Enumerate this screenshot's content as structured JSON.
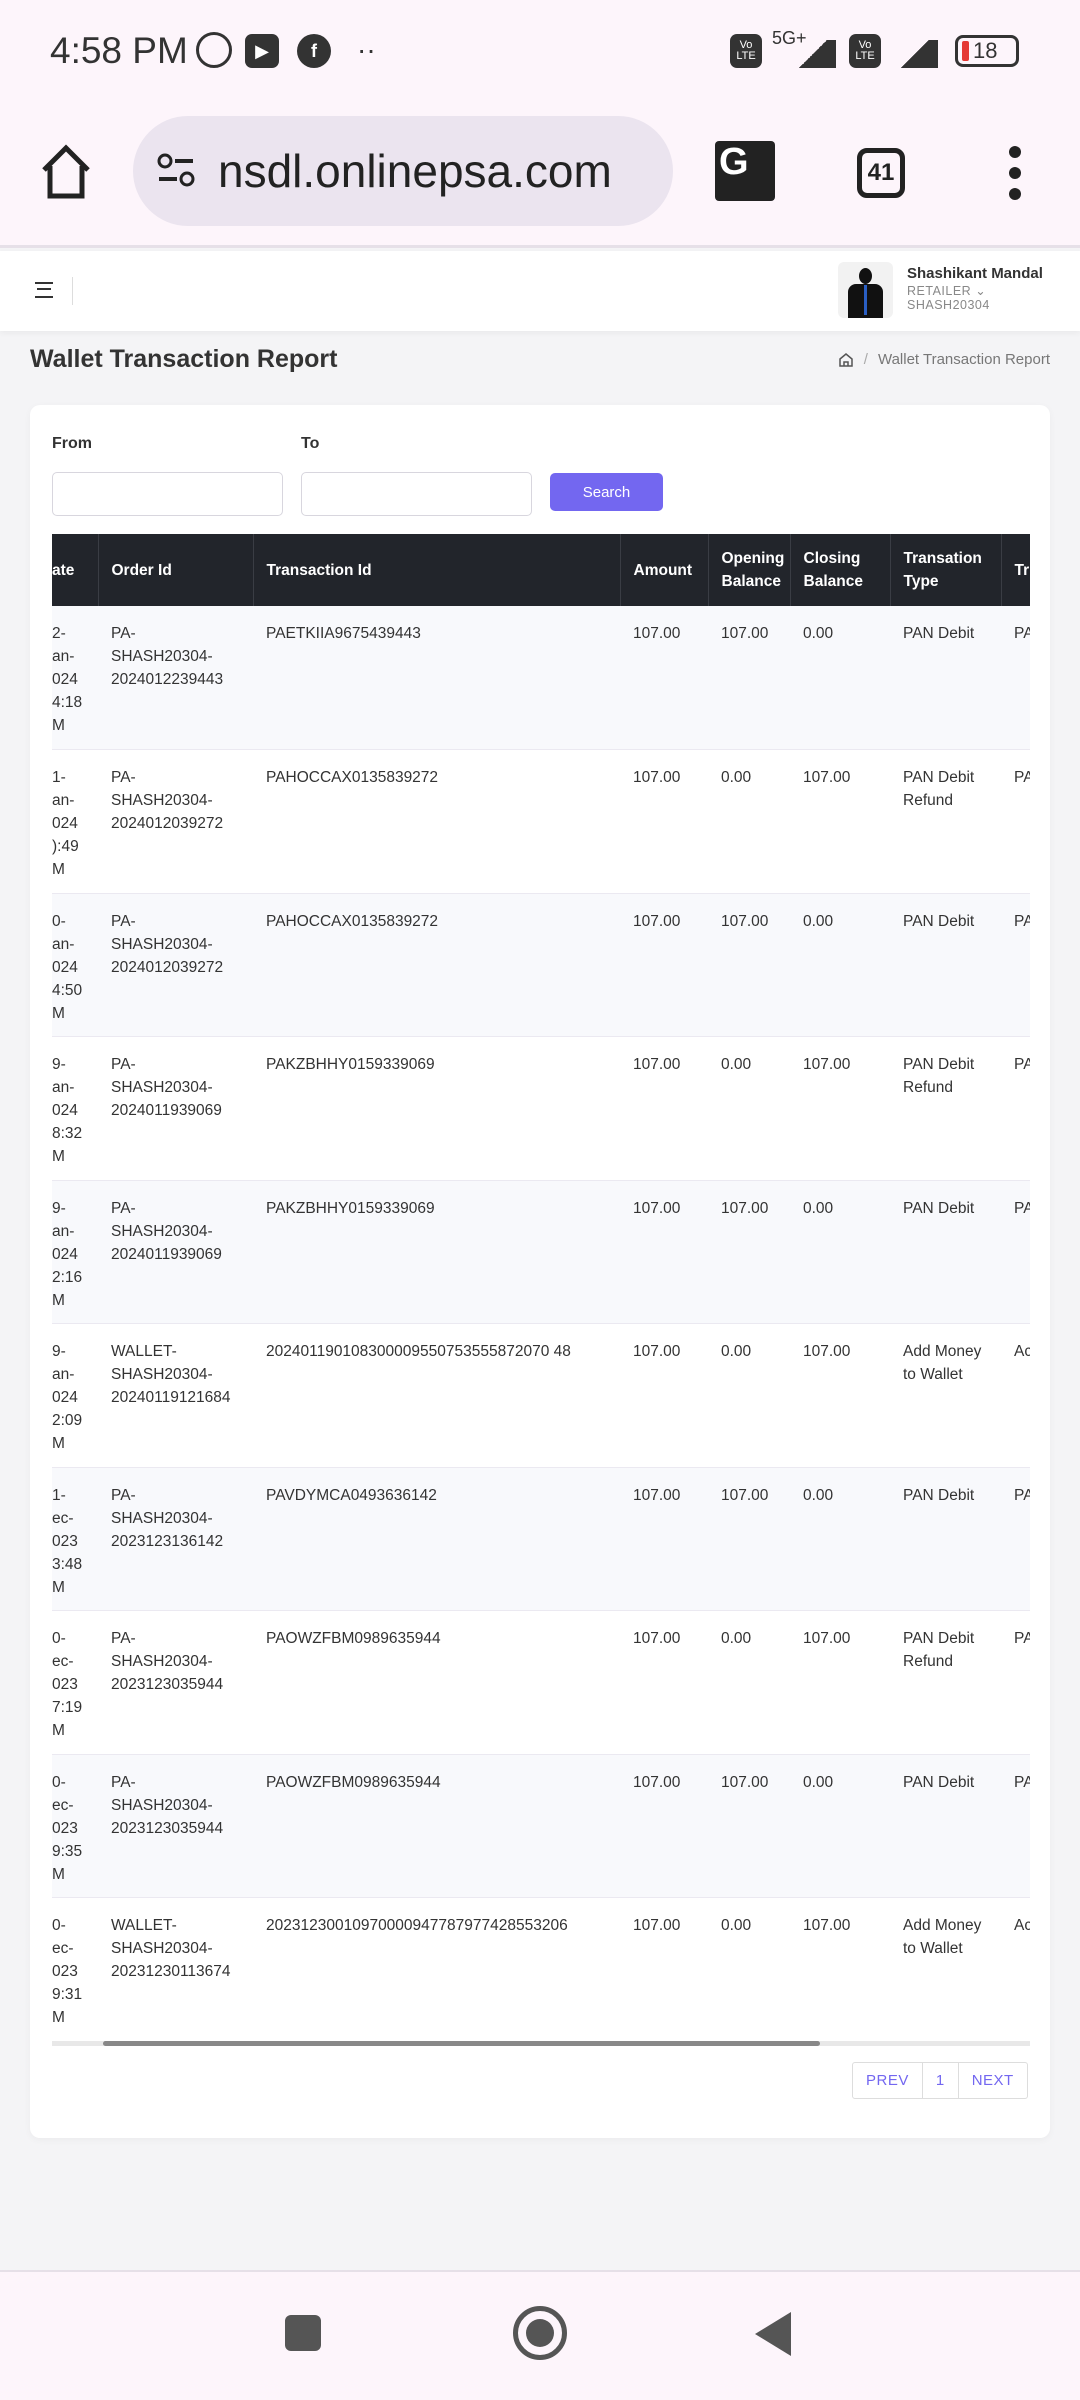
{
  "status_bar": {
    "time": "4:58 PM",
    "battery": "18",
    "network": "5G+",
    "volte": "Vo LTE",
    "icons": [
      "whatsapp-icon",
      "youtube-icon",
      "facebook-icon",
      "more-dots-icon",
      "signal-icon",
      "battery-icon"
    ]
  },
  "browser": {
    "url": "nsdl.onlinepsa.com",
    "tab_count": "41"
  },
  "header": {
    "user_name": "Shashikant Mandal",
    "role": "RETAILER",
    "user_id": "SHASH20304"
  },
  "page": {
    "title": "Wallet Transaction Report",
    "breadcrumb": [
      "Wallet Transaction Report"
    ]
  },
  "filters": {
    "from_label": "From",
    "to_label": "To",
    "from_value": "",
    "to_value": "",
    "search_label": "Search"
  },
  "table": {
    "columns": [
      "ate",
      "Order Id",
      "Transaction Id",
      "Amount",
      "Opening Balance",
      "Closing Balance",
      "Transation Type",
      "Tr"
    ],
    "rows": [
      [
        "2-\nan-\n024\n4:18\nM",
        "PA-\nSHASH20304-\n2024012239443",
        "PAETKIIA9675439443",
        "107.00",
        "107.00",
        "0.00",
        "PAN Debit",
        "PA"
      ],
      [
        "1-\nan-\n024\n):49\nM",
        "PA-\nSHASH20304-\n2024012039272",
        "PAHOCCAX0135839272",
        "107.00",
        "0.00",
        "107.00",
        "PAN Debit\nRefund",
        "PA"
      ],
      [
        "0-\nan-\n024\n4:50\nM",
        "PA-\nSHASH20304-\n2024012039272",
        "PAHOCCAX0135839272",
        "107.00",
        "107.00",
        "0.00",
        "PAN Debit",
        "PA"
      ],
      [
        "9-\nan-\n024\n8:32\nM",
        "PA-\nSHASH20304-\n2024011939069",
        "PAKZBHHY0159339069",
        "107.00",
        "0.00",
        "107.00",
        "PAN Debit\nRefund",
        "PA"
      ],
      [
        "9-\nan-\n024\n2:16\nM",
        "PA-\nSHASH20304-\n2024011939069",
        "PAKZBHHY0159339069",
        "107.00",
        "107.00",
        "0.00",
        "PAN Debit",
        "PA"
      ],
      [
        "9-\nan-\n024\n2:09\nM",
        "WALLET-\nSHASH20304-\n20240119121684",
        "202401190108300009550753555872070 48",
        "107.00",
        "0.00",
        "107.00",
        "Add Money\nto Wallet",
        "Ac"
      ],
      [
        "1-\nec-\n023\n3:48\nM",
        "PA-\nSHASH20304-\n2023123136142",
        "PAVDYMCA0493636142",
        "107.00",
        "107.00",
        "0.00",
        "PAN Debit",
        "PA"
      ],
      [
        "0-\nec-\n023\n7:19\nM",
        "PA-\nSHASH20304-\n2023123035944",
        "PAOWZFBM0989635944",
        "107.00",
        "0.00",
        "107.00",
        "PAN Debit\nRefund",
        "PA"
      ],
      [
        "0-\nec-\n023\n9:35\nM",
        "PA-\nSHASH20304-\n2023123035944",
        "PAOWZFBM0989635944",
        "107.00",
        "107.00",
        "0.00",
        "PAN Debit",
        "PA"
      ],
      [
        "0-\nec-\n023\n9:31\nM",
        "WALLET-\nSHASH20304-\n20231230113674",
        "20231230010970000947787977428553206",
        "107.00",
        "0.00",
        "107.00",
        "Add Money\nto Wallet",
        "Ac"
      ]
    ]
  },
  "pagination": {
    "prev": "PREV",
    "page": "1",
    "next": "NEXT"
  },
  "colors": {
    "accent": "#7367f0",
    "table_header": "#22252b"
  }
}
